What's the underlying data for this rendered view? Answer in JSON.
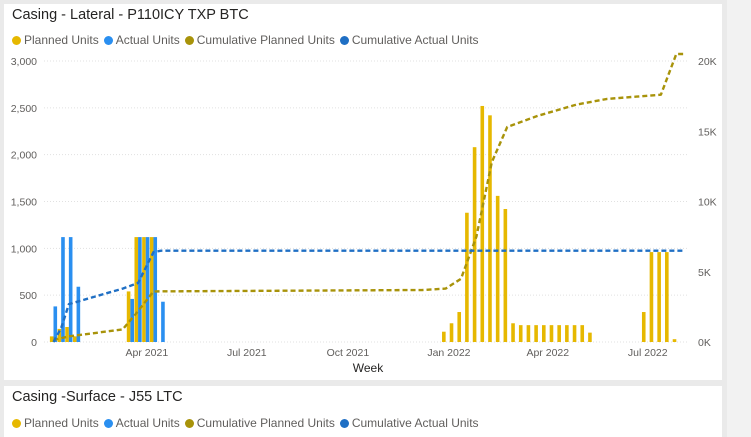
{
  "colors": {
    "planned": "#e6b800",
    "actual": "#2a8ff0",
    "cumPlanned": "#a8930a",
    "cumActual": "#1f6fc4"
  },
  "chart_data": [
    {
      "type": "bar",
      "title": "Casing - Lateral - P110ICY TXP BTC",
      "xlabel": "Week",
      "y_left_ticks": [
        "0",
        "500",
        "1,000",
        "1,500",
        "2,000",
        "2,500",
        "3,000"
      ],
      "y_left_lim": [
        0,
        3000
      ],
      "y_right_ticks": [
        "0K",
        "5K",
        "10K",
        "15K",
        "20K"
      ],
      "y_right_lim": [
        0,
        20000
      ],
      "x_ticks": [
        {
          "label": "Apr 2021",
          "date": "2021-04-01"
        },
        {
          "label": "Jul 2021",
          "date": "2021-07-01"
        },
        {
          "label": "Oct 2021",
          "date": "2021-10-01"
        },
        {
          "label": "Jan 2022",
          "date": "2022-01-01"
        },
        {
          "label": "Apr 2022",
          "date": "2022-04-01"
        },
        {
          "label": "Jul 2022",
          "date": "2022-07-01"
        }
      ],
      "legend": [
        {
          "label": "Planned Units",
          "color": "#e6b800"
        },
        {
          "label": "Actual Units",
          "color": "#2a8ff0"
        },
        {
          "label": "Cumulative Planned Units",
          "color": "#a8930a"
        },
        {
          "label": "Cumulative Actual Units",
          "color": "#1f6fc4"
        }
      ],
      "series": [
        {
          "name": "Planned Units",
          "axis": "left",
          "render": "bar",
          "points": [
            [
              "2021-01-06",
              60
            ],
            [
              "2021-01-13",
              140
            ],
            [
              "2021-01-20",
              160
            ],
            [
              "2021-01-27",
              60
            ],
            [
              "2021-03-17",
              540
            ],
            [
              "2021-03-24",
              1120
            ],
            [
              "2021-03-31",
              1120
            ],
            [
              "2021-04-07",
              1120
            ],
            [
              "2021-12-29",
              110
            ],
            [
              "2022-01-05",
              200
            ],
            [
              "2022-01-12",
              320
            ],
            [
              "2022-01-19",
              1380
            ],
            [
              "2022-01-26",
              2080
            ],
            [
              "2022-02-02",
              2520
            ],
            [
              "2022-02-09",
              2420
            ],
            [
              "2022-02-16",
              1560
            ],
            [
              "2022-02-23",
              1420
            ],
            [
              "2022-03-02",
              200
            ],
            [
              "2022-03-09",
              180
            ],
            [
              "2022-03-16",
              180
            ],
            [
              "2022-03-23",
              180
            ],
            [
              "2022-03-30",
              180
            ],
            [
              "2022-04-06",
              180
            ],
            [
              "2022-04-13",
              180
            ],
            [
              "2022-04-20",
              180
            ],
            [
              "2022-04-27",
              180
            ],
            [
              "2022-05-04",
              180
            ],
            [
              "2022-05-11",
              100
            ],
            [
              "2022-06-29",
              320
            ],
            [
              "2022-07-06",
              960
            ],
            [
              "2022-07-13",
              960
            ],
            [
              "2022-07-20",
              960
            ],
            [
              "2022-07-27",
              30
            ]
          ]
        },
        {
          "name": "Actual Units",
          "axis": "left",
          "render": "bar",
          "points": [
            [
              "2021-01-06",
              380
            ],
            [
              "2021-01-13",
              1120
            ],
            [
              "2021-01-20",
              1120
            ],
            [
              "2021-01-27",
              590
            ],
            [
              "2021-03-17",
              460
            ],
            [
              "2021-03-24",
              1120
            ],
            [
              "2021-03-31",
              1120
            ],
            [
              "2021-04-07",
              1120
            ],
            [
              "2021-04-14",
              430
            ]
          ]
        },
        {
          "name": "Cumulative Planned Units",
          "axis": "right",
          "render": "line",
          "points": [
            [
              "2021-01-06",
              150
            ],
            [
              "2021-01-20",
              400
            ],
            [
              "2021-03-10",
              900
            ],
            [
              "2021-03-24",
              2200
            ],
            [
              "2021-04-07",
              3600
            ],
            [
              "2021-12-08",
              3700
            ],
            [
              "2021-12-29",
              3800
            ],
            [
              "2022-01-12",
              4500
            ],
            [
              "2022-01-26",
              7500
            ],
            [
              "2022-02-09",
              12800
            ],
            [
              "2022-02-23",
              15300
            ],
            [
              "2022-03-23",
              16100
            ],
            [
              "2022-04-27",
              16900
            ],
            [
              "2022-05-25",
              17300
            ],
            [
              "2022-07-13",
              17600
            ],
            [
              "2022-07-27",
              20500
            ],
            [
              "2022-08-03",
              20500
            ]
          ]
        },
        {
          "name": "Cumulative Actual Units",
          "axis": "right",
          "render": "line",
          "points": [
            [
              "2021-01-06",
              0
            ],
            [
              "2021-01-13",
              1000
            ],
            [
              "2021-01-20",
              2700
            ],
            [
              "2021-03-10",
              3800
            ],
            [
              "2021-03-24",
              4200
            ],
            [
              "2021-04-07",
              6400
            ],
            [
              "2021-04-14",
              6500
            ],
            [
              "2022-08-03",
              6500
            ]
          ]
        }
      ]
    },
    {
      "type": "bar",
      "title": "Casing -Surface - J55 LTC",
      "legend": [
        {
          "label": "Planned Units",
          "color": "#e6b800"
        },
        {
          "label": "Actual Units",
          "color": "#2a8ff0"
        },
        {
          "label": "Cumulative Planned Units",
          "color": "#a8930a"
        },
        {
          "label": "Cumulative Actual Units",
          "color": "#1f6fc4"
        }
      ],
      "series": []
    }
  ]
}
